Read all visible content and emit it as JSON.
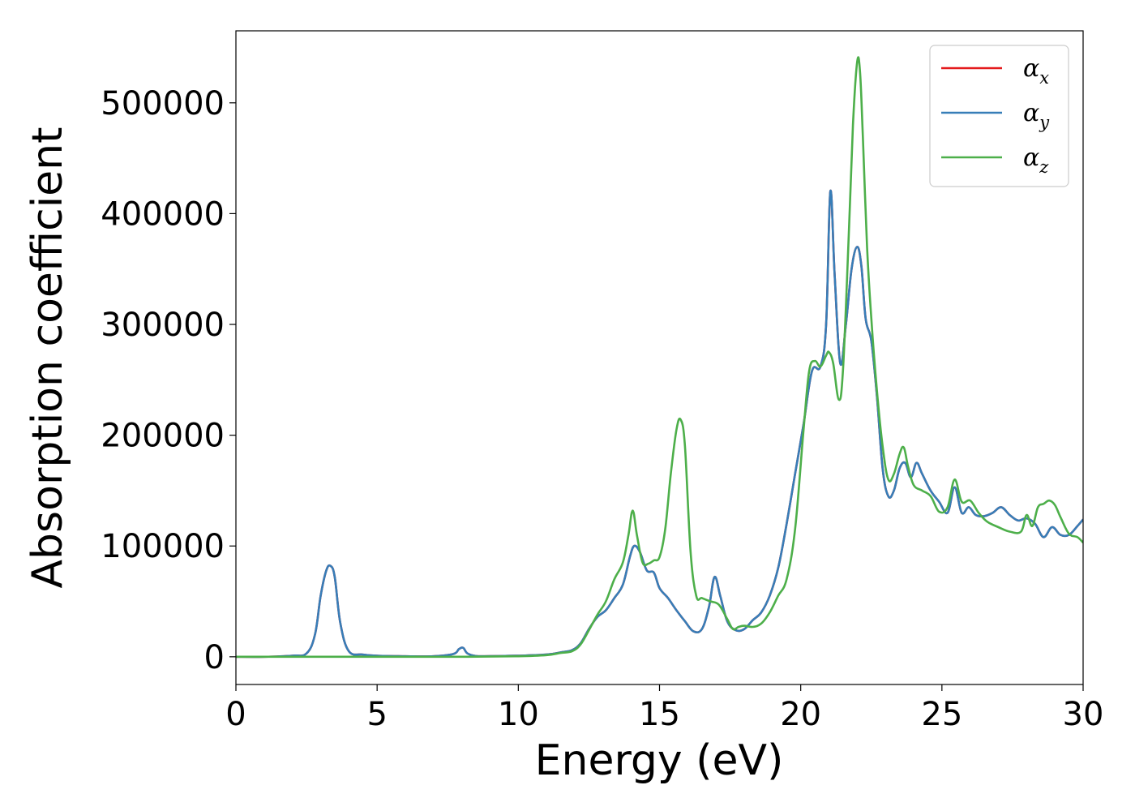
{
  "chart_data": {
    "type": "line",
    "xlabel": "Energy (eV)",
    "ylabel": "Absorption coefficient",
    "xlim": [
      0,
      30
    ],
    "ylim": [
      -25000,
      565000
    ],
    "xticks": [
      0,
      5,
      10,
      15,
      20,
      25,
      30
    ],
    "xtick_labels": [
      "0",
      "5",
      "10",
      "15",
      "20",
      "25",
      "30"
    ],
    "yticks": [
      0,
      100000,
      200000,
      300000,
      400000,
      500000
    ],
    "ytick_labels": [
      "0",
      "100000",
      "200000",
      "300000",
      "400000",
      "500000"
    ],
    "grid": false,
    "legend_position": "top-right",
    "series": [
      {
        "name": "α",
        "subscript": "x",
        "color": "#e41a1c",
        "x": [
          0,
          1,
          2,
          2.5,
          2.8,
          3.0,
          3.2,
          3.35,
          3.5,
          3.7,
          4.0,
          4.5,
          5,
          6,
          7,
          7.7,
          7.9,
          8.05,
          8.2,
          8.5,
          9,
          10,
          11,
          11.5,
          11.9,
          12.2,
          12.5,
          12.8,
          13.1,
          13.4,
          13.7,
          13.95,
          14.1,
          14.3,
          14.55,
          14.8,
          15.0,
          15.3,
          15.6,
          15.9,
          16.2,
          16.5,
          16.75,
          16.95,
          17.15,
          17.4,
          17.7,
          18.0,
          18.3,
          18.6,
          18.9,
          19.2,
          19.5,
          19.8,
          20.1,
          20.4,
          20.7,
          20.9,
          21.05,
          21.2,
          21.4,
          21.6,
          21.8,
          22.0,
          22.15,
          22.3,
          22.5,
          22.7,
          22.9,
          23.1,
          23.3,
          23.5,
          23.7,
          23.9,
          24.1,
          24.3,
          24.6,
          24.9,
          25.2,
          25.45,
          25.7,
          25.95,
          26.2,
          26.5,
          26.8,
          27.1,
          27.4,
          27.7,
          28.0,
          28.3,
          28.6,
          28.9,
          29.2,
          29.5,
          29.8,
          30
        ],
        "y": [
          0,
          0,
          1000,
          3000,
          20000,
          55000,
          78000,
          82000,
          72000,
          30000,
          5000,
          2000,
          1000,
          500,
          500,
          2500,
          7000,
          8000,
          3000,
          700,
          600,
          1000,
          2000,
          4000,
          6000,
          12000,
          25000,
          36000,
          42000,
          53000,
          65000,
          90000,
          100000,
          95000,
          78000,
          76000,
          62000,
          53000,
          42000,
          32000,
          23000,
          25000,
          45000,
          72000,
          55000,
          32000,
          24000,
          25000,
          33000,
          40000,
          55000,
          80000,
          120000,
          165000,
          210000,
          258000,
          262000,
          300000,
          420000,
          345000,
          265000,
          300000,
          350000,
          370000,
          352000,
          305000,
          285000,
          235000,
          170000,
          145000,
          150000,
          170000,
          175000,
          162000,
          175000,
          165000,
          150000,
          140000,
          130000,
          153000,
          130000,
          135000,
          128000,
          127000,
          130000,
          135000,
          128000,
          123000,
          125000,
          120000,
          108000,
          117000,
          110000,
          110000,
          118000,
          124000
        ]
      },
      {
        "name": "α",
        "subscript": "y",
        "color": "#377eb8",
        "x": [
          0,
          1,
          2,
          2.5,
          2.8,
          3.0,
          3.2,
          3.35,
          3.5,
          3.7,
          4.0,
          4.5,
          5,
          6,
          7,
          7.7,
          7.9,
          8.05,
          8.2,
          8.5,
          9,
          10,
          11,
          11.5,
          11.9,
          12.2,
          12.5,
          12.8,
          13.1,
          13.4,
          13.7,
          13.95,
          14.1,
          14.3,
          14.55,
          14.8,
          15.0,
          15.3,
          15.6,
          15.9,
          16.2,
          16.5,
          16.75,
          16.95,
          17.15,
          17.4,
          17.7,
          18.0,
          18.3,
          18.6,
          18.9,
          19.2,
          19.5,
          19.8,
          20.1,
          20.4,
          20.7,
          20.9,
          21.05,
          21.2,
          21.4,
          21.6,
          21.8,
          22.0,
          22.15,
          22.3,
          22.5,
          22.7,
          22.9,
          23.1,
          23.3,
          23.5,
          23.7,
          23.9,
          24.1,
          24.3,
          24.6,
          24.9,
          25.2,
          25.45,
          25.7,
          25.95,
          26.2,
          26.5,
          26.8,
          27.1,
          27.4,
          27.7,
          28.0,
          28.3,
          28.6,
          28.9,
          29.2,
          29.5,
          29.8,
          30
        ],
        "y": [
          0,
          0,
          1000,
          3000,
          20000,
          55000,
          78000,
          82000,
          72000,
          30000,
          5000,
          2000,
          1000,
          500,
          500,
          2500,
          7000,
          8000,
          3000,
          700,
          600,
          1000,
          2000,
          4000,
          6000,
          12000,
          25000,
          36000,
          42000,
          53000,
          65000,
          90000,
          100000,
          95000,
          78000,
          76000,
          62000,
          53000,
          42000,
          32000,
          23000,
          25000,
          45000,
          72000,
          55000,
          32000,
          24000,
          25000,
          33000,
          40000,
          55000,
          80000,
          120000,
          165000,
          210000,
          258000,
          262000,
          300000,
          420000,
          345000,
          265000,
          300000,
          350000,
          370000,
          352000,
          305000,
          285000,
          235000,
          170000,
          145000,
          150000,
          170000,
          175000,
          162000,
          175000,
          165000,
          150000,
          140000,
          130000,
          153000,
          130000,
          135000,
          128000,
          127000,
          130000,
          135000,
          128000,
          123000,
          125000,
          120000,
          108000,
          117000,
          110000,
          110000,
          118000,
          124000
        ]
      },
      {
        "name": "α",
        "subscript": "z",
        "color": "#4daf4a",
        "x": [
          0,
          2,
          4,
          6,
          8,
          10,
          11,
          11.5,
          11.9,
          12.2,
          12.5,
          12.8,
          13.1,
          13.4,
          13.7,
          13.9,
          14.05,
          14.2,
          14.4,
          14.6,
          14.8,
          15.0,
          15.2,
          15.4,
          15.6,
          15.75,
          15.9,
          16.1,
          16.3,
          16.5,
          16.8,
          17.1,
          17.4,
          17.6,
          17.8,
          18.0,
          18.3,
          18.6,
          18.9,
          19.2,
          19.5,
          19.8,
          20.1,
          20.3,
          20.5,
          20.7,
          20.9,
          21.0,
          21.15,
          21.35,
          21.5,
          21.7,
          21.85,
          22.0,
          22.1,
          22.2,
          22.35,
          22.5,
          22.7,
          22.9,
          23.1,
          23.3,
          23.5,
          23.65,
          23.8,
          24.0,
          24.3,
          24.6,
          24.9,
          25.2,
          25.45,
          25.7,
          26.0,
          26.3,
          26.6,
          27.0,
          27.4,
          27.8,
          28.0,
          28.2,
          28.4,
          28.6,
          28.8,
          29.0,
          29.2,
          29.5,
          29.8,
          30
        ],
        "y": [
          0,
          0,
          0,
          0,
          0,
          500,
          1500,
          3500,
          5000,
          11000,
          24000,
          38000,
          50000,
          70000,
          85000,
          110000,
          132000,
          110000,
          85000,
          84000,
          87000,
          90000,
          115000,
          165000,
          205000,
          214000,
          190000,
          95000,
          55000,
          53000,
          50000,
          47000,
          34000,
          25000,
          27000,
          28000,
          27000,
          30000,
          40000,
          55000,
          70000,
          115000,
          205000,
          258000,
          267000,
          262000,
          272000,
          275000,
          265000,
          232000,
          260000,
          380000,
          480000,
          537000,
          528000,
          470000,
          370000,
          305000,
          240000,
          190000,
          160000,
          165000,
          183000,
          189000,
          172000,
          155000,
          150000,
          145000,
          131000,
          135000,
          160000,
          140000,
          141000,
          130000,
          122000,
          117000,
          113000,
          113000,
          128000,
          118000,
          135000,
          138000,
          141000,
          137000,
          126000,
          111000,
          108000,
          103000
        ]
      }
    ]
  }
}
